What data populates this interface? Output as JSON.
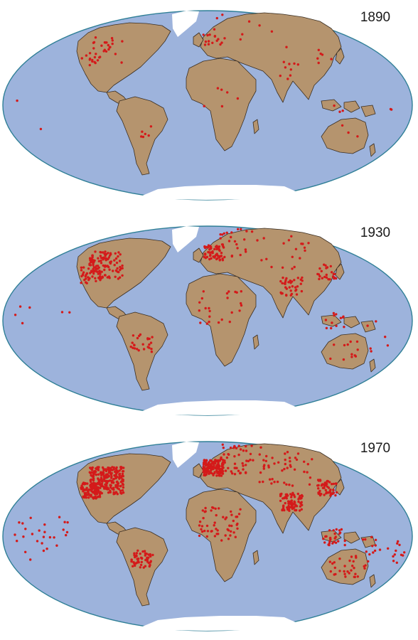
{
  "colors": {
    "ocean": "#9db3dc",
    "ocean_border": "#2f7f96",
    "land": "#b5946e",
    "ice": "#ffffff",
    "station": "#d41a1a"
  },
  "maps": [
    {
      "year": "1890",
      "station_density": 1
    },
    {
      "year": "1930",
      "station_density": 2
    },
    {
      "year": "1970",
      "station_density": 3
    }
  ]
}
